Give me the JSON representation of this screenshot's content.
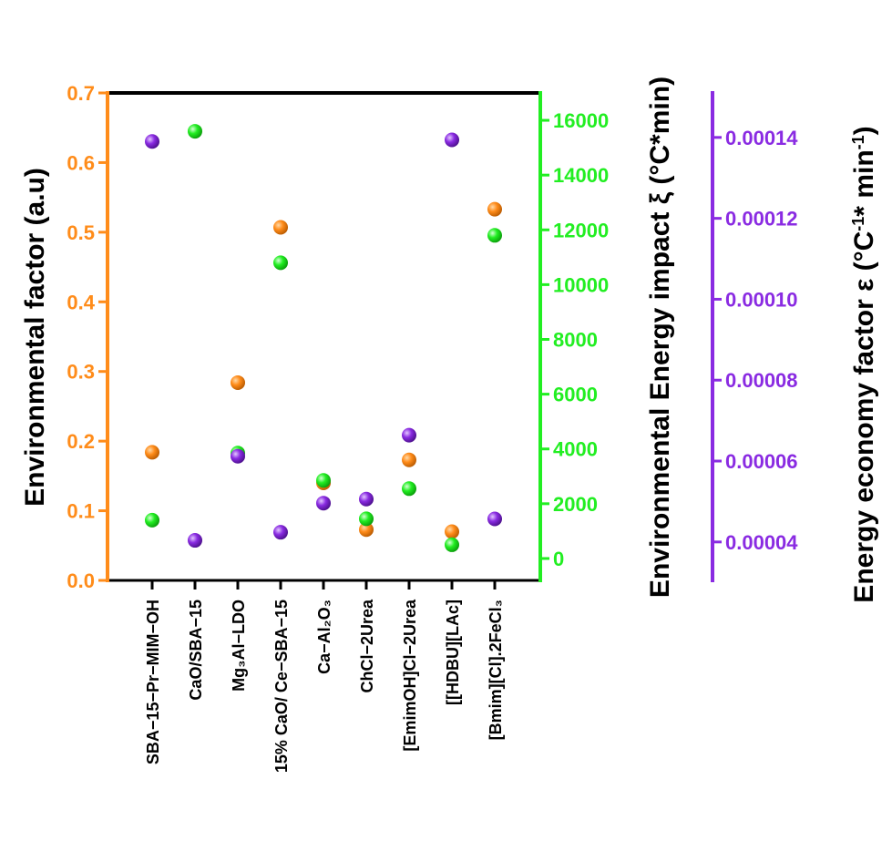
{
  "chart_data": {
    "type": "scatter",
    "categories": [
      "SBA−15−Pr−MIM−OH",
      "CaO/SBA−15",
      "Mg₃Al−LDO",
      "15% CaO/ Ce−SBA−15",
      "Ca−Al₂O₃",
      "ChCl−2Urea",
      "[EmimOH]Cl−2Urea",
      "[[HDBU][LAc]",
      "[Bmim][Cl].2FeCl₃"
    ],
    "axes": {
      "left": {
        "label": "Environmental factor (a.u)",
        "ylim": [
          0.0,
          0.7
        ],
        "ticks": [
          "0.0",
          "0.1",
          "0.2",
          "0.3",
          "0.4",
          "0.5",
          "0.6",
          "0.7"
        ],
        "color": "#ff8c1a"
      },
      "right1": {
        "label": "Environmental Energy impact ξ  (°C*min)",
        "ylim": [
          -800,
          17000
        ],
        "ticks": [
          "0",
          "2000",
          "4000",
          "6000",
          "8000",
          "10000",
          "12000",
          "14000",
          "16000"
        ],
        "color": "#22ee22"
      },
      "right2": {
        "label_main": "Energy economy factor ε   (°C",
        "label_sup1": "-1",
        "label_mid": "* min",
        "label_sup2": "-1",
        "label_end": ")",
        "ylim": [
          3.05e-05,
          0.000151
        ],
        "ticks": [
          "0.00004",
          "0.00006",
          "0.00008",
          "0.00010",
          "0.00012",
          "0.00014"
        ],
        "color": "#8a2be2"
      }
    },
    "series": [
      {
        "axis": "left",
        "color": "#ff8c1a",
        "values": [
          0.184,
          null,
          0.284,
          0.507,
          0.14,
          0.073,
          0.173,
          0.07,
          0.533
        ]
      },
      {
        "axis": "right1",
        "color": "#22ee22",
        "values": [
          1400,
          15600,
          3850,
          10800,
          2850,
          1450,
          2550,
          500,
          11800
        ]
      },
      {
        "axis": "right2",
        "color": "#8a2be2",
        "values": [
          0.000139,
          4.04e-05,
          6.12e-05,
          4.24e-05,
          4.96e-05,
          5.06e-05,
          6.64e-05,
          0.0001394,
          4.57e-05
        ]
      }
    ]
  }
}
